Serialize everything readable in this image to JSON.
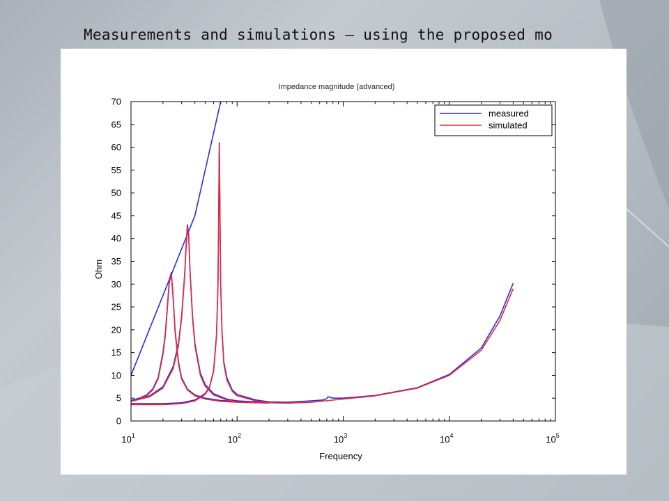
{
  "slide": {
    "title": "Measurements and simulations – using the proposed mo"
  },
  "colors": {
    "measured": "#2a2ae6",
    "simulated": "#e8283a"
  },
  "chart_data": {
    "type": "line",
    "title": "Impedance magnitude (advanced)",
    "xlabel": "Frequency",
    "ylabel": "Ohm",
    "xscale": "log",
    "xlim": [
      10,
      100000
    ],
    "ylim": [
      0,
      70
    ],
    "yticks": [
      "0",
      "5",
      "10",
      "15",
      "20",
      "25",
      "30",
      "35",
      "40",
      "45",
      "50",
      "55",
      "60",
      "65",
      "70"
    ],
    "xticks": [
      {
        "base": "10",
        "exp": "1"
      },
      {
        "base": "10",
        "exp": "2"
      },
      {
        "base": "10",
        "exp": "3"
      },
      {
        "base": "10",
        "exp": "4"
      },
      {
        "base": "10",
        "exp": "5"
      }
    ],
    "grid": false,
    "legend_position": "top-right",
    "legend": [
      "measured",
      "simulated"
    ],
    "series": [
      {
        "name": "measured",
        "x": [
          10,
          40,
          70
        ],
        "y": [
          10,
          45,
          70
        ]
      },
      {
        "name": "measured",
        "x": [
          10,
          12,
          14,
          16,
          18,
          20,
          21,
          22,
          23,
          24,
          25,
          26,
          28,
          30,
          34,
          40,
          50,
          70,
          100,
          150
        ],
        "y": [
          4.5,
          5,
          5.7,
          7,
          9.5,
          15,
          19,
          25,
          31,
          32.5,
          27,
          20,
          13,
          9.5,
          7,
          5.7,
          5,
          4.5,
          4.3,
          4.2
        ]
      },
      {
        "name": "measured",
        "x": [
          10,
          15,
          20,
          25,
          28,
          30,
          32,
          33,
          34,
          35,
          36,
          38,
          40,
          45,
          50,
          60,
          80,
          100,
          150,
          200
        ],
        "y": [
          4.5,
          5.5,
          7.5,
          12,
          17,
          23,
          32,
          38,
          43,
          41,
          33,
          23,
          17,
          10.5,
          8,
          6,
          4.8,
          4.4,
          4.2,
          4.1
        ]
      },
      {
        "name": "measured",
        "x": [
          10,
          20,
          30,
          40,
          50,
          55,
          60,
          64,
          66,
          67,
          68,
          69,
          70,
          72,
          75,
          80,
          90,
          100,
          150,
          200,
          300,
          500,
          650,
          700,
          720,
          800,
          1000,
          2000,
          5000,
          10000,
          20000,
          30000,
          40000
        ],
        "y": [
          3.8,
          3.8,
          4,
          4.6,
          6,
          7.5,
          11,
          19,
          30,
          45,
          61,
          45,
          30,
          20,
          13,
          9.5,
          6.8,
          5.8,
          4.6,
          4.2,
          4.1,
          4.4,
          4.6,
          4.9,
          5.3,
          5.0,
          5.0,
          5.6,
          7.3,
          10.2,
          16,
          23,
          30.2
        ]
      },
      {
        "name": "simulated",
        "x": [
          10,
          12,
          14,
          16,
          18,
          20,
          21,
          22,
          23,
          24,
          25,
          26,
          28,
          30,
          34,
          40,
          50,
          70,
          100,
          150
        ],
        "y": [
          4.3,
          4.8,
          5.5,
          6.8,
          9.2,
          14.5,
          18.5,
          24.5,
          30.5,
          32,
          26.5,
          19.5,
          12.5,
          9.2,
          6.8,
          5.5,
          4.8,
          4.3,
          4.1,
          4.0
        ]
      },
      {
        "name": "simulated",
        "x": [
          10,
          15,
          20,
          25,
          28,
          30,
          32,
          33,
          34,
          35,
          36,
          38,
          40,
          45,
          50,
          60,
          80,
          100,
          150,
          200
        ],
        "y": [
          4.3,
          5.3,
          7.2,
          11.5,
          16.5,
          22.5,
          31.5,
          37.5,
          42.5,
          40.5,
          32.5,
          22.5,
          16.5,
          10,
          7.6,
          5.7,
          4.6,
          4.2,
          4.0,
          3.9
        ]
      },
      {
        "name": "simulated",
        "x": [
          10,
          20,
          30,
          40,
          50,
          55,
          60,
          64,
          66,
          67,
          68,
          69,
          70,
          72,
          75,
          80,
          90,
          100,
          150,
          200,
          300,
          500,
          1000,
          2000,
          5000,
          10000,
          20000,
          30000,
          40000
        ],
        "y": [
          3.6,
          3.6,
          3.8,
          4.4,
          5.8,
          7.3,
          10.8,
          18.5,
          29.5,
          44.5,
          60.5,
          44.5,
          29.5,
          19.5,
          12.5,
          9,
          6.5,
          5.5,
          4.4,
          4.0,
          3.9,
          4.1,
          4.8,
          5.5,
          7.2,
          10,
          15.5,
          22,
          29
        ]
      }
    ]
  }
}
